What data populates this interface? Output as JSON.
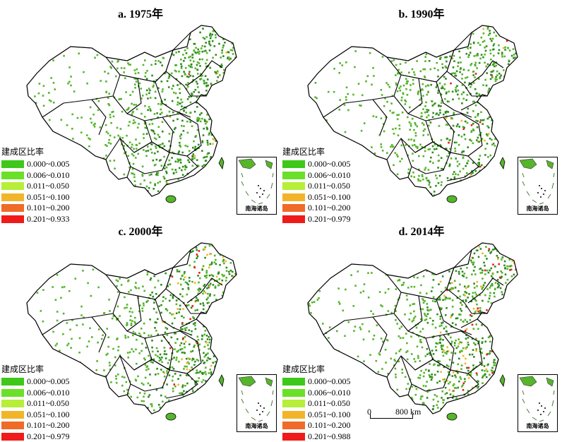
{
  "legend_title": "建成区比率",
  "classes": [
    {
      "color": "#3ec81a"
    },
    {
      "color": "#6be028"
    },
    {
      "color": "#b6ee3a"
    },
    {
      "color": "#f2b52a"
    },
    {
      "color": "#f06a28"
    },
    {
      "color": "#f01a1a"
    }
  ],
  "panels": [
    {
      "title": "a. 1975年",
      "legend": [
        "0.000~0.005",
        "0.006~0.010",
        "0.011~0.050",
        "0.051~0.100",
        "0.101~0.200",
        "0.201~0.933"
      ],
      "intensity": 0.15
    },
    {
      "title": "b. 1990年",
      "legend": [
        "0.000~0.005",
        "0.006~0.010",
        "0.011~0.050",
        "0.051~0.100",
        "0.101~0.200",
        "0.201~0.979"
      ],
      "intensity": 0.35
    },
    {
      "title": "c. 2000年",
      "legend": [
        "0.000~0.005",
        "0.006~0.010",
        "0.011~0.050",
        "0.051~0.100",
        "0.101~0.200",
        "0.201~0.979"
      ],
      "intensity": 0.6
    },
    {
      "title": "d. 2014年",
      "legend": [
        "0.000~0.005",
        "0.006~0.010",
        "0.011~0.050",
        "0.051~0.100",
        "0.101~0.200",
        "0.201~0.988"
      ],
      "intensity": 0.9
    }
  ],
  "inset_label": "南海诸岛",
  "scale": {
    "zero": "0",
    "label": "800 km"
  },
  "map_colors": {
    "base": "#55b52b",
    "dark": "#2e8b1f",
    "border": "#000000",
    "outline": "#333333",
    "nine_dash": "#4a7a3a"
  }
}
